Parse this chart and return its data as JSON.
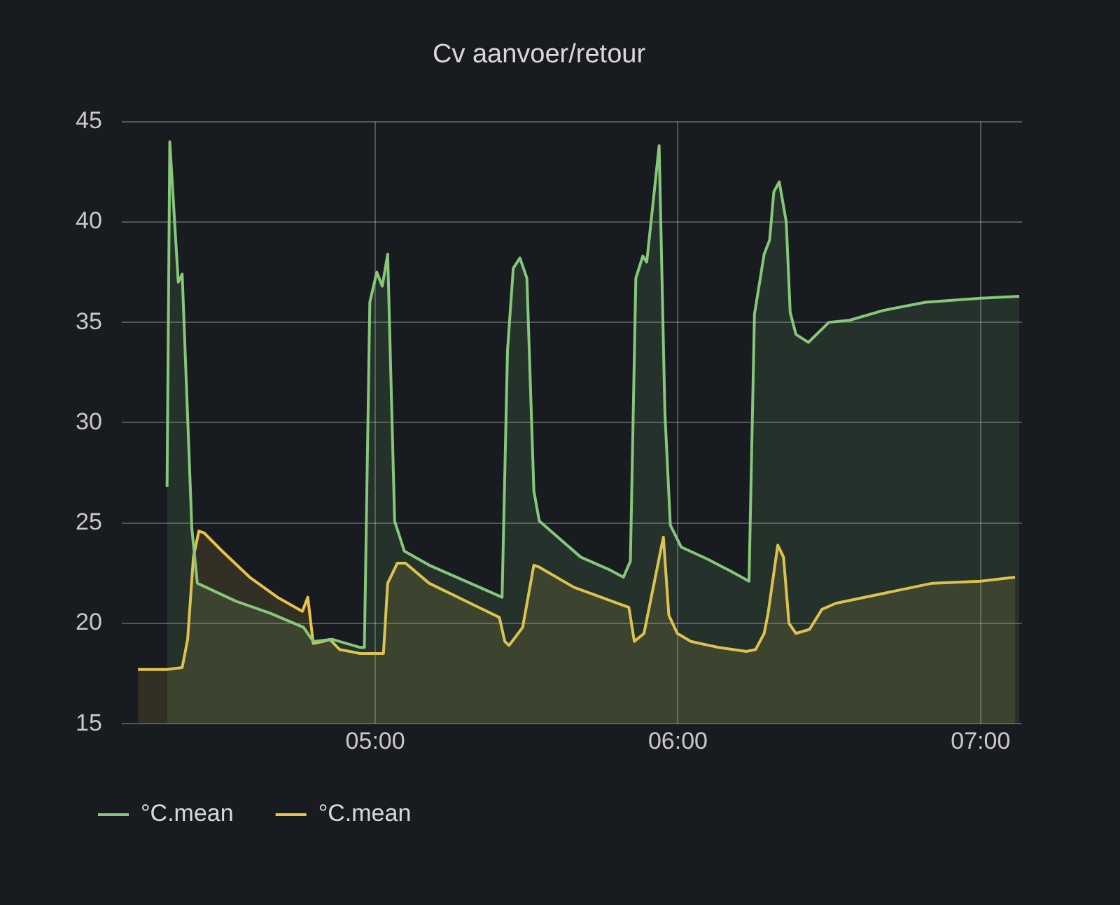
{
  "chart_data": {
    "type": "area",
    "title": "Cv aanvoer/retour",
    "xlim": [
      4.162,
      7.137
    ],
    "xticks": [
      {
        "value": 5,
        "label": "05:00"
      },
      {
        "value": 6,
        "label": "06:00"
      },
      {
        "value": 7,
        "label": "07:00"
      }
    ],
    "ylim": [
      15,
      45
    ],
    "yticks": [
      15,
      20,
      25,
      30,
      35,
      40,
      45
    ],
    "grid": true,
    "legend": "bottom",
    "series": [
      {
        "name": "°C.mean",
        "color": "#86c77a",
        "x": [
          4.312,
          4.321,
          4.349,
          4.362,
          4.394,
          4.412,
          4.54,
          4.654,
          4.763,
          4.795,
          4.859,
          4.95,
          4.964,
          4.982,
          5.005,
          5.023,
          5.041,
          5.064,
          5.096,
          5.178,
          5.314,
          5.419,
          5.437,
          5.456,
          5.478,
          5.501,
          5.524,
          5.542,
          5.679,
          5.77,
          5.82,
          5.843,
          5.861,
          5.884,
          5.897,
          5.938,
          5.957,
          5.975,
          6.011,
          6.098,
          6.175,
          6.235,
          6.253,
          6.285,
          6.303,
          6.317,
          6.335,
          6.358,
          6.371,
          6.39,
          6.431,
          6.499,
          6.567,
          6.681,
          6.818,
          7.0,
          7.128
        ],
        "values": [
          26.8,
          44.0,
          37.0,
          37.4,
          24.7,
          22.0,
          21.1,
          20.5,
          19.8,
          19.1,
          19.2,
          18.8,
          18.8,
          36.0,
          37.5,
          36.8,
          38.4,
          25.1,
          23.6,
          22.9,
          22.0,
          21.3,
          33.6,
          37.7,
          38.2,
          37.2,
          26.6,
          25.1,
          23.3,
          22.7,
          22.3,
          23.1,
          37.2,
          38.3,
          38.0,
          43.8,
          30.5,
          24.9,
          23.8,
          23.2,
          22.6,
          22.1,
          35.4,
          38.4,
          39.1,
          41.5,
          42.0,
          40.0,
          35.5,
          34.4,
          34.0,
          35.0,
          35.1,
          35.6,
          36.0,
          36.2,
          36.3
        ]
      },
      {
        "name": "°C.mean",
        "color": "#eac248",
        "x": [
          4.216,
          4.312,
          4.362,
          4.38,
          4.399,
          4.417,
          4.435,
          4.494,
          4.585,
          4.677,
          4.759,
          4.777,
          4.795,
          4.827,
          4.85,
          4.882,
          4.95,
          5.027,
          5.041,
          5.073,
          5.1,
          5.178,
          5.314,
          5.41,
          5.428,
          5.442,
          5.487,
          5.524,
          5.542,
          5.656,
          5.838,
          5.856,
          5.888,
          5.952,
          5.97,
          5.998,
          6.043,
          6.134,
          6.226,
          6.257,
          6.285,
          6.298,
          6.33,
          6.349,
          6.367,
          6.39,
          6.435,
          6.476,
          6.522,
          6.681,
          6.841,
          7.0,
          7.114
        ],
        "values": [
          17.7,
          17.7,
          17.8,
          19.2,
          23.3,
          24.6,
          24.5,
          23.6,
          22.3,
          21.3,
          20.6,
          21.3,
          19.0,
          19.1,
          19.2,
          18.7,
          18.5,
          18.5,
          22.0,
          23.0,
          23.0,
          22.0,
          21.0,
          20.3,
          19.1,
          18.9,
          19.8,
          22.9,
          22.8,
          21.8,
          20.8,
          19.1,
          19.5,
          24.3,
          20.4,
          19.5,
          19.1,
          18.8,
          18.6,
          18.7,
          19.5,
          20.5,
          23.9,
          23.3,
          20.0,
          19.5,
          19.7,
          20.7,
          21.0,
          21.5,
          22.0,
          22.1,
          22.3
        ]
      }
    ]
  }
}
